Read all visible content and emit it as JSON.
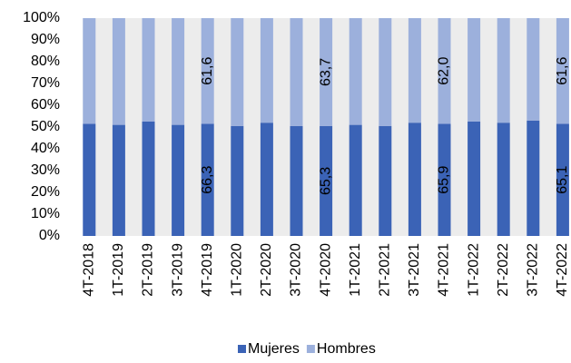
{
  "chart_data": {
    "type": "stacked_bar_100",
    "categories": [
      "4T-2018",
      "1T-2019",
      "2T-2019",
      "3T-2019",
      "4T-2019",
      "1T-2020",
      "2T-2020",
      "3T-2020",
      "4T-2020",
      "1T-2021",
      "2T-2021",
      "3T-2021",
      "4T-2021",
      "1T-2022",
      "2T-2022",
      "3T-2022",
      "4T-2022"
    ],
    "series": [
      {
        "name": "Mujeres",
        "color": "#3b63b6",
        "values": [
          51.5,
          51,
          52.5,
          51,
          51.5,
          50.5,
          52,
          50.5,
          50.5,
          51,
          50.5,
          52,
          51.5,
          52.5,
          52,
          53,
          51.5
        ],
        "annotations": [
          null,
          null,
          null,
          null,
          "66,3",
          null,
          null,
          null,
          "65,3",
          null,
          null,
          null,
          "65,9",
          null,
          null,
          null,
          "65,1"
        ]
      },
      {
        "name": "Hombres",
        "color": "#9cb0dc",
        "values": [
          48.5,
          49,
          47.5,
          49,
          48.5,
          49.5,
          48,
          49.5,
          49.5,
          49,
          49.5,
          48,
          48.5,
          47.5,
          48,
          47,
          48.5
        ],
        "annotations": [
          null,
          null,
          null,
          null,
          "61,6",
          null,
          null,
          null,
          "63,7",
          null,
          null,
          null,
          "62,0",
          null,
          null,
          null,
          "61,6"
        ]
      }
    ],
    "ylim": [
      0,
      100
    ],
    "yticks": [
      {
        "value": 0,
        "label": "0%"
      },
      {
        "value": 10,
        "label": "10%"
      },
      {
        "value": 20,
        "label": "20%"
      },
      {
        "value": 30,
        "label": "30%"
      },
      {
        "value": 40,
        "label": "40%"
      },
      {
        "value": 50,
        "label": "50%"
      },
      {
        "value": 60,
        "label": "60%"
      },
      {
        "value": 70,
        "label": "70%"
      },
      {
        "value": 80,
        "label": "80%"
      },
      {
        "value": 90,
        "label": "90%"
      },
      {
        "value": 100,
        "label": "100%"
      }
    ],
    "legend": "bottom"
  }
}
